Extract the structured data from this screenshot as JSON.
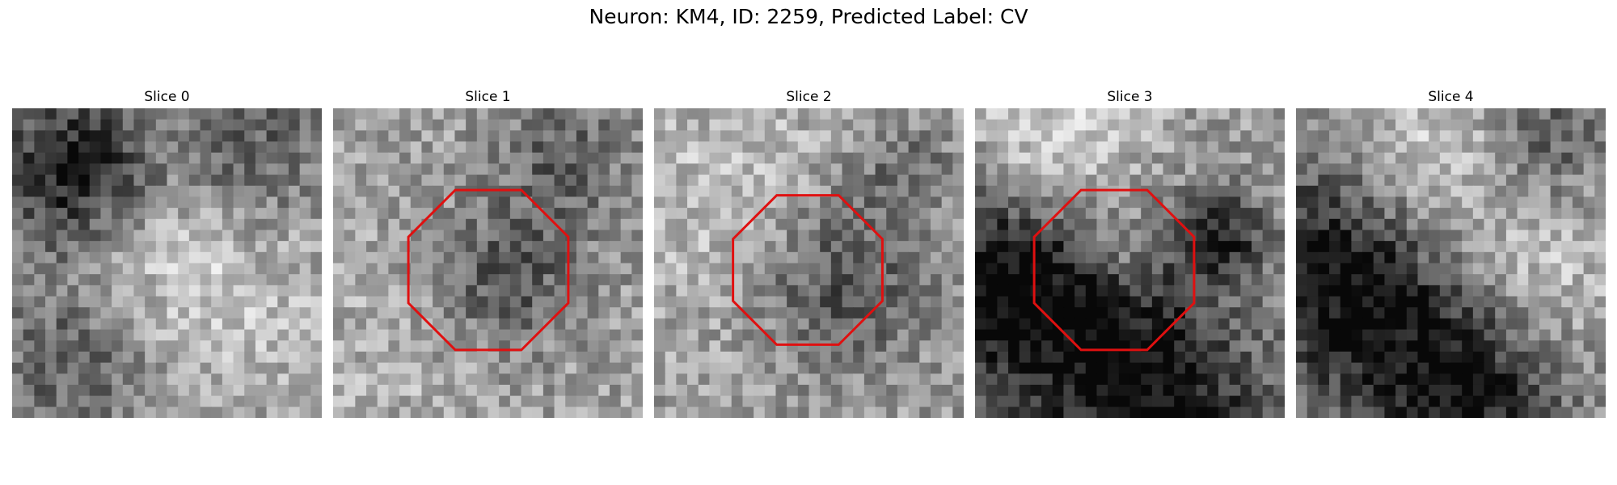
{
  "figure": {
    "title": "Neuron: KM4, ID: 2259, Predicted Label: CV"
  },
  "panels": [
    {
      "title": "Slice 0",
      "has_roi": false,
      "seed": 11
    },
    {
      "title": "Slice 1",
      "has_roi": true,
      "seed": 23
    },
    {
      "title": "Slice 2",
      "has_roi": true,
      "seed": 37
    },
    {
      "title": "Slice 3",
      "has_roi": true,
      "seed": 41
    },
    {
      "title": "Slice 4",
      "has_roi": false,
      "seed": 53
    }
  ],
  "colors": {
    "roi": "#e01010"
  },
  "image": {
    "grid": 28
  }
}
